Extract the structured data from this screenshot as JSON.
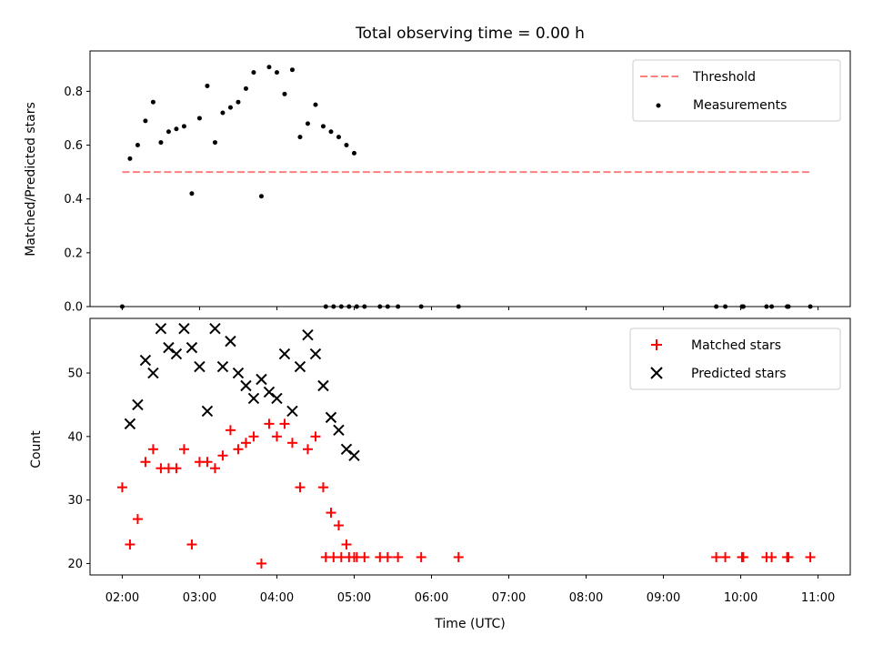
{
  "chart_data": [
    {
      "type": "scatter",
      "title": "Total observing time = 0.00 h",
      "xlabel": "",
      "ylabel": "Matched/Predicted stars",
      "xlim": [
        "01:35",
        "11:25"
      ],
      "ylim": [
        0,
        0.95
      ],
      "y_ticks": [
        "0.0",
        "0.2",
        "0.4",
        "0.6",
        "0.8"
      ],
      "grid": false,
      "legend": "upper right",
      "threshold": {
        "name": "Threshold",
        "value": 0.5,
        "x_start": "02:00",
        "x_end": "10:54",
        "color": "#ff7f7f",
        "style": "dashed"
      },
      "series": [
        {
          "name": "Measurements",
          "color": "#000000",
          "marker": "dot",
          "points": [
            [
              "02:00",
              0.0
            ],
            [
              "02:06",
              0.55
            ],
            [
              "02:12",
              0.6
            ],
            [
              "02:18",
              0.69
            ],
            [
              "02:24",
              0.76
            ],
            [
              "02:30",
              0.61
            ],
            [
              "02:36",
              0.65
            ],
            [
              "02:42",
              0.66
            ],
            [
              "02:48",
              0.67
            ],
            [
              "02:54",
              0.42
            ],
            [
              "03:00",
              0.7
            ],
            [
              "03:06",
              0.82
            ],
            [
              "03:12",
              0.61
            ],
            [
              "03:18",
              0.72
            ],
            [
              "03:24",
              0.74
            ],
            [
              "03:30",
              0.76
            ],
            [
              "03:36",
              0.81
            ],
            [
              "03:42",
              0.87
            ],
            [
              "03:48",
              0.41
            ],
            [
              "03:54",
              0.89
            ],
            [
              "04:00",
              0.87
            ],
            [
              "04:06",
              0.79
            ],
            [
              "04:12",
              0.88
            ],
            [
              "04:18",
              0.63
            ],
            [
              "04:24",
              0.68
            ],
            [
              "04:30",
              0.75
            ],
            [
              "04:36",
              0.67
            ],
            [
              "04:42",
              0.65
            ],
            [
              "04:48",
              0.63
            ],
            [
              "04:54",
              0.6
            ],
            [
              "05:00",
              0.57
            ],
            [
              "04:38",
              0.0
            ],
            [
              "04:44",
              0.0
            ],
            [
              "04:50",
              0.0
            ],
            [
              "04:56",
              0.0
            ],
            [
              "05:02",
              0.0
            ],
            [
              "05:08",
              0.0
            ],
            [
              "05:20",
              0.0
            ],
            [
              "05:26",
              0.0
            ],
            [
              "05:34",
              0.0
            ],
            [
              "05:52",
              0.0
            ],
            [
              "06:21",
              0.0
            ],
            [
              "09:41",
              0.0
            ],
            [
              "09:48",
              0.0
            ],
            [
              "10:01",
              0.0
            ],
            [
              "10:02",
              0.0
            ],
            [
              "10:20",
              0.0
            ],
            [
              "10:24",
              0.0
            ],
            [
              "10:36",
              0.0
            ],
            [
              "10:37",
              0.0
            ],
            [
              "10:54",
              0.0
            ]
          ]
        }
      ]
    },
    {
      "type": "scatter",
      "title": "",
      "xlabel": "Time (UTC)",
      "ylabel": "Count",
      "xlim": [
        "01:35",
        "11:25"
      ],
      "ylim": [
        18.2,
        58.6
      ],
      "x_ticks": [
        "02:00",
        "03:00",
        "04:00",
        "05:00",
        "06:00",
        "07:00",
        "08:00",
        "09:00",
        "10:00",
        "11:00"
      ],
      "y_ticks": [
        "20",
        "30",
        "40",
        "50"
      ],
      "grid": false,
      "legend": "upper right",
      "series": [
        {
          "name": "Matched stars",
          "color": "#ff0000",
          "marker": "plus",
          "points": [
            [
              "02:00",
              32
            ],
            [
              "02:06",
              23
            ],
            [
              "02:12",
              27
            ],
            [
              "02:18",
              36
            ],
            [
              "02:24",
              38
            ],
            [
              "02:30",
              35
            ],
            [
              "02:36",
              35
            ],
            [
              "02:42",
              35
            ],
            [
              "02:48",
              38
            ],
            [
              "02:54",
              23
            ],
            [
              "03:00",
              36
            ],
            [
              "03:06",
              36
            ],
            [
              "03:12",
              35
            ],
            [
              "03:18",
              37
            ],
            [
              "03:24",
              41
            ],
            [
              "03:30",
              38
            ],
            [
              "03:36",
              39
            ],
            [
              "03:42",
              40
            ],
            [
              "03:48",
              20
            ],
            [
              "03:54",
              42
            ],
            [
              "04:00",
              40
            ],
            [
              "04:06",
              42
            ],
            [
              "04:12",
              39
            ],
            [
              "04:18",
              32
            ],
            [
              "04:24",
              38
            ],
            [
              "04:30",
              40
            ],
            [
              "04:36",
              32
            ],
            [
              "04:42",
              28
            ],
            [
              "04:48",
              26
            ],
            [
              "04:54",
              23
            ],
            [
              "05:00",
              21
            ],
            [
              "04:38",
              21
            ],
            [
              "04:44",
              21
            ],
            [
              "04:50",
              21
            ],
            [
              "04:56",
              21
            ],
            [
              "05:02",
              21
            ],
            [
              "05:08",
              21
            ],
            [
              "05:20",
              21
            ],
            [
              "05:26",
              21
            ],
            [
              "05:34",
              21
            ],
            [
              "05:52",
              21
            ],
            [
              "06:21",
              21
            ],
            [
              "09:41",
              21
            ],
            [
              "09:48",
              21
            ],
            [
              "10:01",
              21
            ],
            [
              "10:02",
              21
            ],
            [
              "10:20",
              21
            ],
            [
              "10:24",
              21
            ],
            [
              "10:36",
              21
            ],
            [
              "10:37",
              21
            ],
            [
              "10:54",
              21
            ]
          ]
        },
        {
          "name": "Predicted stars",
          "color": "#000000",
          "marker": "x",
          "points": [
            [
              "02:06",
              42
            ],
            [
              "02:12",
              45
            ],
            [
              "02:18",
              52
            ],
            [
              "02:24",
              50
            ],
            [
              "02:30",
              57
            ],
            [
              "02:36",
              54
            ],
            [
              "02:42",
              53
            ],
            [
              "02:48",
              57
            ],
            [
              "02:54",
              54
            ],
            [
              "03:00",
              51
            ],
            [
              "03:06",
              44
            ],
            [
              "03:12",
              57
            ],
            [
              "03:18",
              51
            ],
            [
              "03:24",
              55
            ],
            [
              "03:30",
              50
            ],
            [
              "03:36",
              48
            ],
            [
              "03:42",
              46
            ],
            [
              "03:48",
              49
            ],
            [
              "03:54",
              47
            ],
            [
              "04:00",
              46
            ],
            [
              "04:06",
              53
            ],
            [
              "04:12",
              44
            ],
            [
              "04:18",
              51
            ],
            [
              "04:24",
              56
            ],
            [
              "04:30",
              53
            ],
            [
              "04:36",
              48
            ],
            [
              "04:42",
              43
            ],
            [
              "04:48",
              41
            ],
            [
              "04:54",
              38
            ],
            [
              "05:00",
              37
            ]
          ]
        }
      ]
    }
  ]
}
